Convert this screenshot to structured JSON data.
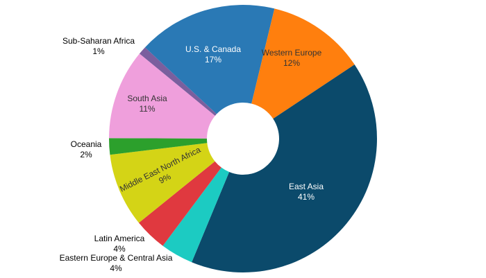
{
  "chart_data": {
    "type": "donut",
    "categories": [
      "U.S. & Canada",
      "Western Europe",
      "East Asia",
      "Eastern Europe & Central Asia",
      "Latin America",
      "Middle East North Africa",
      "Oceania",
      "South Asia",
      "Sub-Saharan Africa"
    ],
    "values": [
      17,
      12,
      41,
      4,
      4,
      9,
      2,
      11,
      1
    ],
    "value_labels": [
      "17%",
      "12%",
      "41%",
      "4%",
      "4%",
      "9%",
      "2%",
      "11%",
      "1%"
    ],
    "colors": [
      "#2a79b5",
      "#ff7f0e",
      "#0b4a6b",
      "#1ccbc2",
      "#e0393f",
      "#d4d416",
      "#2ca02c",
      "#ef9fdc",
      "#7a5f9e"
    ]
  }
}
